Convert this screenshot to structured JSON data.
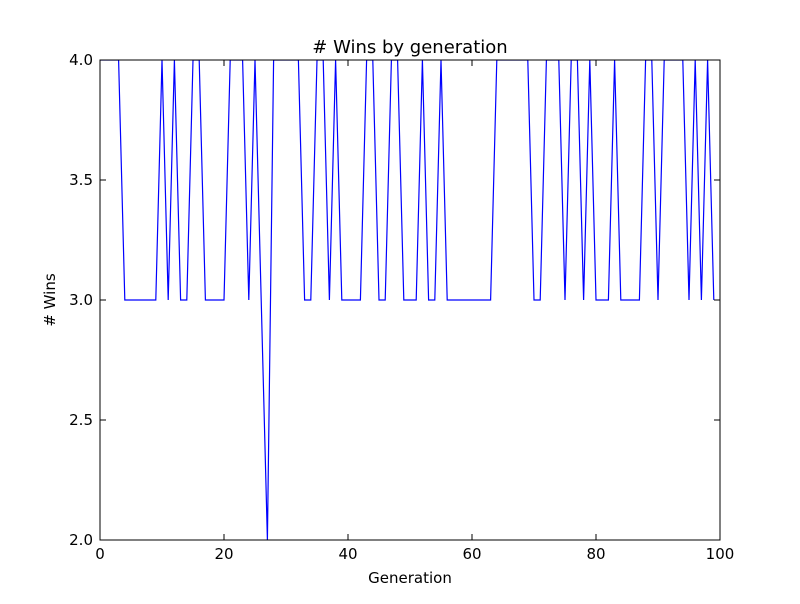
{
  "chart_data": {
    "type": "line",
    "title": "# Wins by generation",
    "xlabel": "Generation",
    "ylabel": "# Wins",
    "xlim": [
      0,
      100
    ],
    "ylim": [
      2.0,
      4.0
    ],
    "xticks": [
      0,
      20,
      40,
      60,
      80,
      100
    ],
    "xtick_labels": [
      "0",
      "20",
      "40",
      "60",
      "80",
      "100"
    ],
    "yticks": [
      2.0,
      2.5,
      3.0,
      3.5,
      4.0
    ],
    "ytick_labels": [
      "2.0",
      "2.5",
      "3.0",
      "3.5",
      "4.0"
    ],
    "grid": false,
    "series": [
      {
        "color": "#0000ff",
        "x": [
          0,
          1,
          2,
          3,
          4,
          5,
          6,
          7,
          8,
          9,
          10,
          11,
          12,
          13,
          14,
          15,
          16,
          17,
          18,
          19,
          20,
          21,
          22,
          23,
          24,
          25,
          26,
          27,
          28,
          29,
          30,
          31,
          32,
          33,
          34,
          35,
          36,
          37,
          38,
          39,
          40,
          41,
          42,
          43,
          44,
          45,
          46,
          47,
          48,
          49,
          50,
          51,
          52,
          53,
          54,
          55,
          56,
          57,
          58,
          59,
          60,
          61,
          62,
          63,
          64,
          65,
          66,
          67,
          68,
          69,
          70,
          71,
          72,
          73,
          74,
          75,
          76,
          77,
          78,
          79,
          80,
          81,
          82,
          83,
          84,
          85,
          86,
          87,
          88,
          89,
          90,
          91,
          92,
          93,
          94,
          95,
          96,
          97,
          98,
          99
        ],
        "y": [
          4,
          4,
          4,
          4,
          3,
          3,
          3,
          3,
          3,
          3,
          4,
          3,
          4,
          3,
          3,
          4,
          4,
          3,
          3,
          3,
          3,
          4,
          4,
          4,
          3,
          4,
          3,
          2,
          4,
          4,
          4,
          4,
          4,
          3,
          3,
          4,
          4,
          3,
          4,
          3,
          3,
          3,
          3,
          4,
          4,
          3,
          3,
          4,
          4,
          3,
          3,
          3,
          4,
          3,
          3,
          4,
          3,
          3,
          3,
          3,
          3,
          3,
          3,
          3,
          4,
          4,
          4,
          4,
          4,
          4,
          3,
          3,
          4,
          4,
          4,
          3,
          4,
          4,
          3,
          4,
          3,
          3,
          3,
          4,
          3,
          3,
          3,
          3,
          4,
          4,
          3,
          4,
          4,
          4,
          4,
          3,
          4,
          3,
          4,
          3
        ]
      }
    ]
  }
}
